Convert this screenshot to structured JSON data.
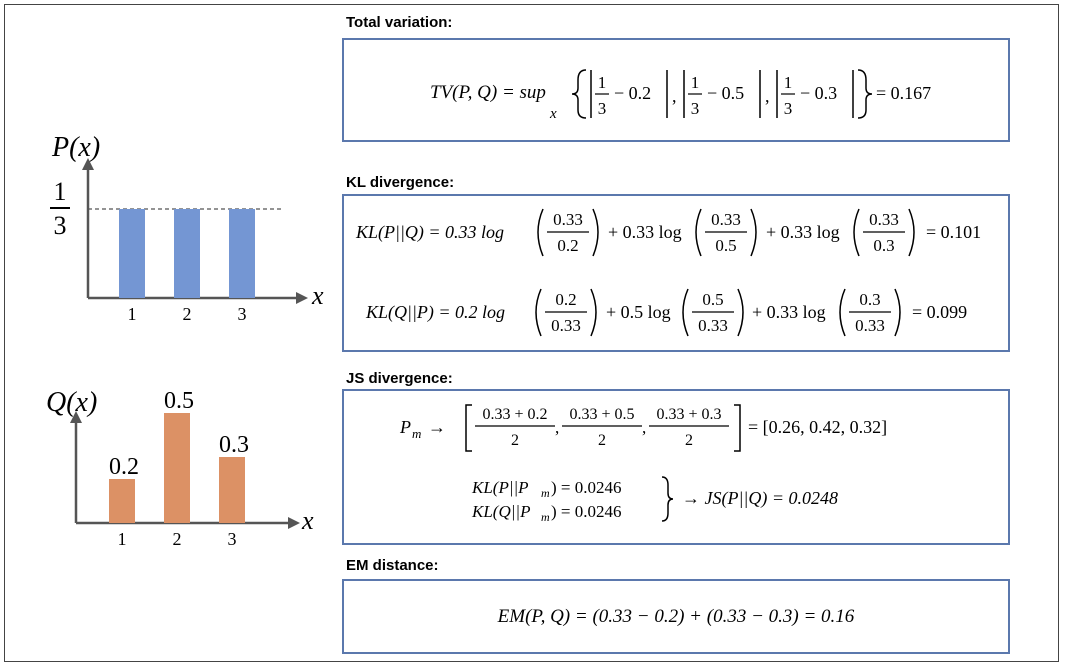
{
  "sections": {
    "tv": {
      "title": "Total variation:"
    },
    "kl": {
      "title": "KL divergence:"
    },
    "js": {
      "title": "JS divergence:"
    },
    "em": {
      "title": "EM distance:"
    }
  },
  "eq": {
    "tv": {
      "lhs": "TV(P, Q) = sup",
      "sub": "x",
      "t1": "− 0.2",
      "t2": "− 0.5",
      "t3": "− 0.3",
      "result": "= 0.167"
    },
    "kl1": {
      "lhs": "KL(P||Q) = 0.33 log",
      "n1": "0.33",
      "d1": "0.2",
      "mid1": "+ 0.33 log",
      "n2": "0.33",
      "d2": "0.5",
      "mid2": "+ 0.33 log",
      "n3": "0.33",
      "d3": "0.3",
      "result": "= 0.101"
    },
    "kl2": {
      "lhs": "KL(Q||P) = 0.2 log",
      "n1": "0.2",
      "d1": "0.33",
      "mid1": "+ 0.5 log",
      "n2": "0.5",
      "d2": "0.33",
      "mid2": "+ 0.33 log",
      "n3": "0.3",
      "d3": "0.33",
      "result": "= 0.099"
    },
    "js": {
      "pm": "P",
      "pm_sub": "m",
      "arrow": "→",
      "f1n": "0.33 + 0.2",
      "f2n": "0.33 + 0.5",
      "f3n": "0.33 + 0.3",
      "den": "2",
      "result": "= [0.26, 0.42, 0.32]",
      "kl_a": "KL(P||P",
      "kl_b": "KL(Q||P",
      "kl_val": ") = 0.0246",
      "js_result": "→ JS(P||Q) = 0.0248"
    },
    "em": {
      "text": "EM(P, Q) = (0.33 − 0.2) + (0.33 − 0.3) = 0.16"
    }
  },
  "chart_data": [
    {
      "type": "bar",
      "ylabel": "P(x)",
      "xlabel": "x",
      "categories": [
        "1",
        "2",
        "3"
      ],
      "values": [
        0.333,
        0.333,
        0.333
      ],
      "ytick_numerator": "1",
      "ytick_denominator": "3",
      "reference_line": 0.333,
      "color": "#7496d3"
    },
    {
      "type": "bar",
      "ylabel": "Q(x)",
      "xlabel": "x",
      "categories": [
        "1",
        "2",
        "3"
      ],
      "values": [
        0.2,
        0.5,
        0.3
      ],
      "data_labels": [
        "0.2",
        "0.5",
        "0.3"
      ],
      "color": "#dc9165"
    }
  ]
}
